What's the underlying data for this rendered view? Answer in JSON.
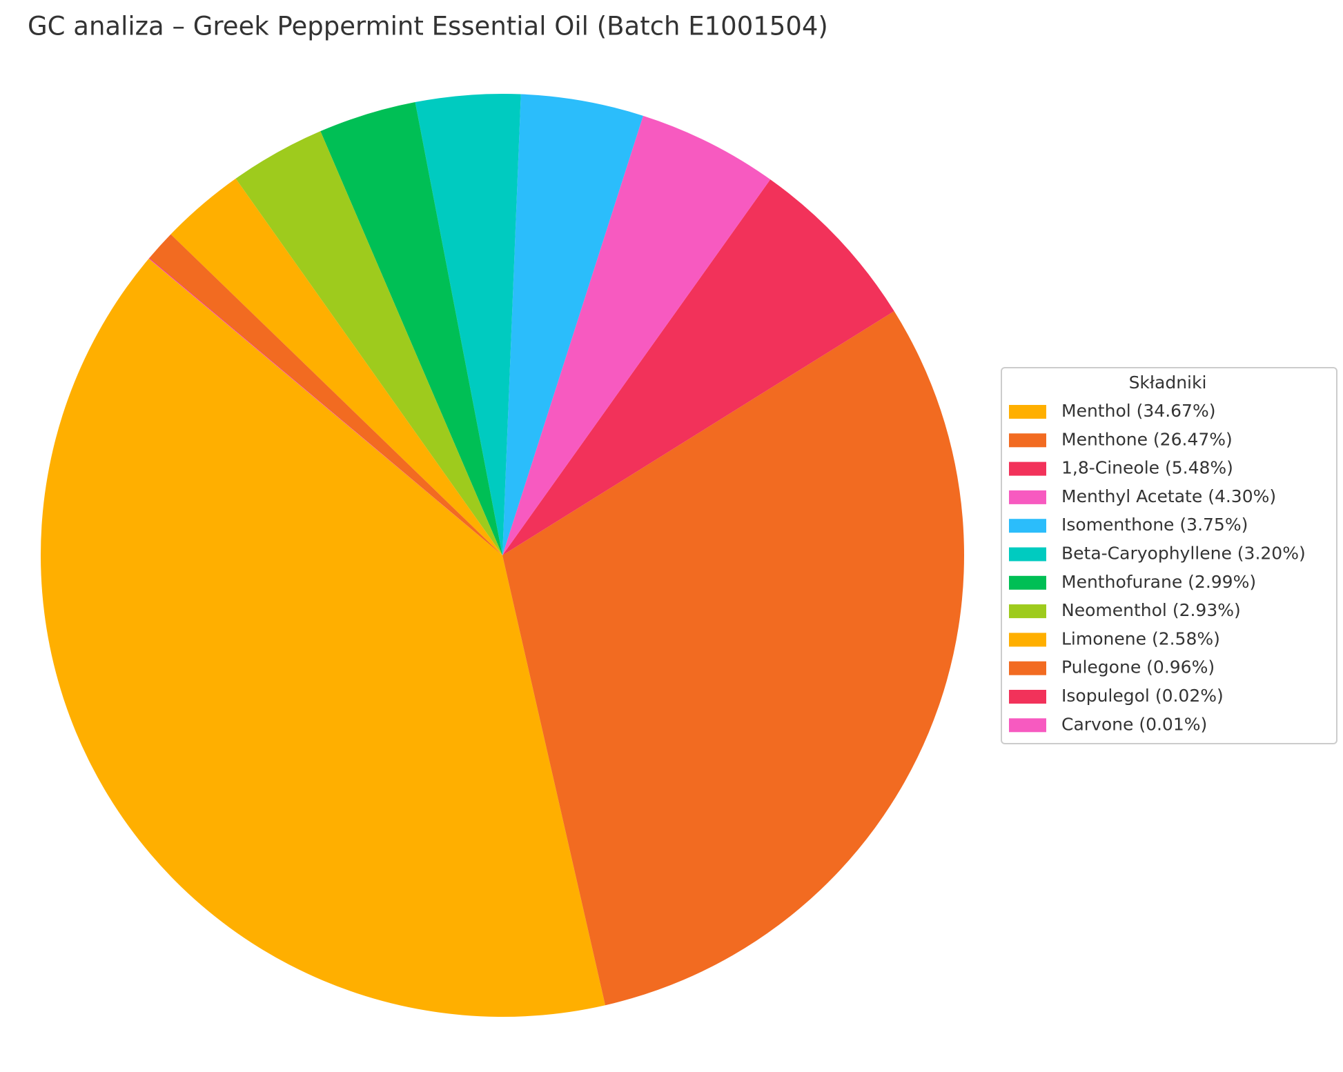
{
  "chart_data": {
    "type": "pie",
    "title": "GC analiza – Greek Peppermint Essential Oil (Batch E1001504)",
    "legend_title": "Składniki",
    "legend_position": "right",
    "categories": [
      "Menthol",
      "Menthone",
      "1,8-Cineole",
      "Menthyl Acetate",
      "Isomenthone",
      "Beta-Caryophyllene",
      "Menthofurane",
      "Neomenthol",
      "Limonene",
      "Pulegone",
      "Isopulegol",
      "Carvone"
    ],
    "values": [
      34.67,
      26.47,
      5.48,
      4.3,
      3.75,
      3.2,
      2.99,
      2.93,
      2.58,
      0.96,
      0.02,
      0.01
    ],
    "value_labels": [
      "(34.67%)",
      "(26.47%)",
      "(5.48%)",
      "(4.30%)",
      "(3.75%)",
      "(3.20%)",
      "(2.99%)",
      "(2.93%)",
      "(2.58%)",
      "(0.96%)",
      "(0.02%)",
      "(0.01%)"
    ],
    "colors": [
      "#FFAF00",
      "#F26B21",
      "#F2325A",
      "#F75AC0",
      "#2BBDFB",
      "#00CBC0",
      "#00BF55",
      "#9ECB1D",
      "#FFAF00",
      "#F26B21",
      "#F2325A",
      "#F75AC0"
    ]
  }
}
